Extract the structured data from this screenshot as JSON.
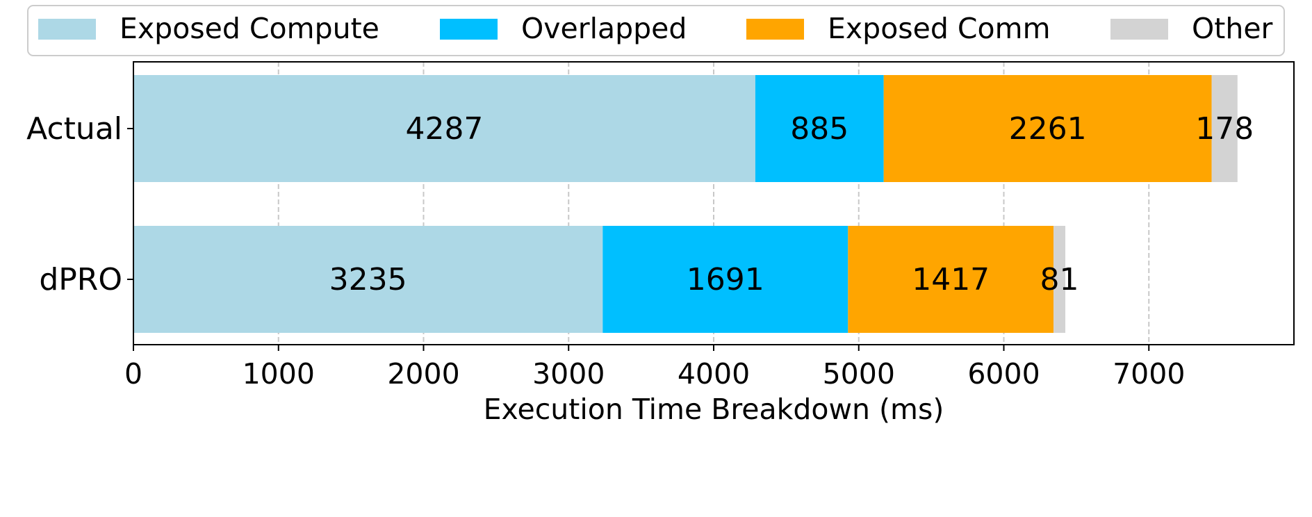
{
  "chart_data": {
    "type": "bar",
    "orientation": "horizontal",
    "stacked": true,
    "title": "",
    "xlabel": "Execution Time Breakdown (ms)",
    "ylabel": "",
    "xlim": [
      0,
      8000
    ],
    "xticks": [
      0,
      1000,
      2000,
      3000,
      4000,
      5000,
      6000,
      7000
    ],
    "grid": "x-dashed",
    "legend_position": "top",
    "categories": [
      "Actual",
      "dPRO"
    ],
    "series": [
      {
        "name": "Exposed Compute",
        "color": "#add8e6",
        "values": [
          4287,
          3235
        ]
      },
      {
        "name": "Overlapped",
        "color": "#00bfff",
        "values": [
          885,
          1691
        ]
      },
      {
        "name": "Exposed Comm",
        "color": "#ffa500",
        "values": [
          2261,
          1417
        ]
      },
      {
        "name": "Other",
        "color": "#d3d3d3",
        "values": [
          178,
          81
        ]
      }
    ]
  }
}
